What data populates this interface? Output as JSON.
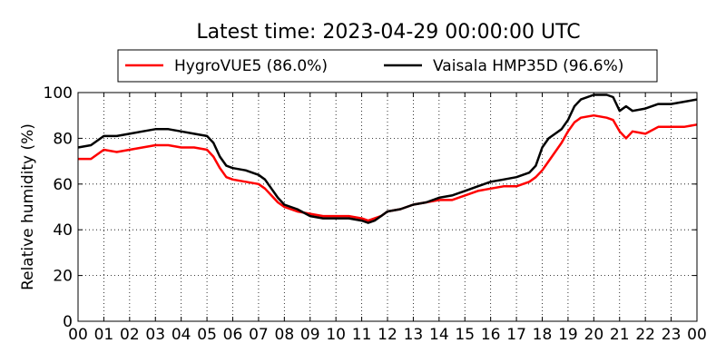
{
  "chart_data": {
    "type": "line",
    "title": "Latest time: 2023-04-29 00:00:00 UTC",
    "xlabel": "",
    "ylabel": "Relative humidity (%)",
    "xlim": [
      0,
      24
    ],
    "ylim": [
      0,
      100
    ],
    "x_ticks": [
      "00",
      "01",
      "02",
      "03",
      "04",
      "05",
      "06",
      "07",
      "08",
      "09",
      "10",
      "11",
      "12",
      "13",
      "14",
      "15",
      "16",
      "17",
      "18",
      "19",
      "20",
      "21",
      "22",
      "23",
      "00"
    ],
    "y_ticks": [
      0,
      20,
      40,
      60,
      80,
      100
    ],
    "grid": true,
    "legend_position": "top",
    "series": [
      {
        "name": "HygroVUE5 (86.0%)",
        "color": "#ff0000",
        "x": [
          0,
          0.5,
          1,
          1.5,
          2,
          2.5,
          3,
          3.5,
          4,
          4.5,
          5,
          5.25,
          5.5,
          5.75,
          6,
          6.5,
          7,
          7.25,
          7.5,
          7.75,
          8,
          8.5,
          9,
          9.5,
          10,
          10.5,
          11,
          11.25,
          11.5,
          11.75,
          12,
          12.5,
          13,
          13.5,
          14,
          14.5,
          15,
          15.5,
          16,
          16.5,
          17,
          17.5,
          17.75,
          18,
          18.25,
          18.5,
          18.75,
          19,
          19.25,
          19.5,
          20,
          20.5,
          20.75,
          21,
          21.25,
          21.5,
          22,
          22.5,
          23,
          23.5,
          24
        ],
        "y": [
          71,
          71,
          75,
          74,
          75,
          76,
          77,
          77,
          76,
          76,
          75,
          72,
          67,
          63,
          62,
          61,
          60,
          58,
          55,
          52,
          50,
          48,
          47,
          46,
          46,
          46,
          45,
          44,
          45,
          46,
          48,
          49,
          51,
          52,
          53,
          53,
          55,
          57,
          58,
          59,
          59,
          61,
          63,
          66,
          70,
          74,
          78,
          83,
          87,
          89,
          90,
          89,
          88,
          83,
          80,
          83,
          82,
          85,
          85,
          85,
          86
        ]
      },
      {
        "name": "Vaisala HMP35D (96.6%)",
        "color": "#000000",
        "x": [
          0,
          0.5,
          1,
          1.5,
          2,
          2.5,
          3,
          3.5,
          4,
          4.5,
          5,
          5.25,
          5.5,
          5.75,
          6,
          6.5,
          7,
          7.25,
          7.5,
          7.75,
          8,
          8.5,
          9,
          9.5,
          10,
          10.5,
          11,
          11.25,
          11.5,
          11.75,
          12,
          12.5,
          13,
          13.5,
          14,
          14.5,
          15,
          15.5,
          16,
          16.5,
          17,
          17.5,
          17.75,
          18,
          18.25,
          18.5,
          18.75,
          19,
          19.25,
          19.5,
          20,
          20.5,
          20.75,
          21,
          21.25,
          21.5,
          22,
          22.5,
          23,
          23.5,
          24
        ],
        "y": [
          76,
          77,
          81,
          81,
          82,
          83,
          84,
          84,
          83,
          82,
          81,
          78,
          72,
          68,
          67,
          66,
          64,
          62,
          58,
          54,
          51,
          49,
          46,
          45,
          45,
          45,
          44,
          43,
          44,
          46,
          48,
          49,
          51,
          52,
          54,
          55,
          57,
          59,
          61,
          62,
          63,
          65,
          68,
          76,
          80,
          82,
          84,
          88,
          94,
          97,
          99,
          99,
          98,
          92,
          94,
          92,
          93,
          95,
          95,
          96,
          97
        ]
      }
    ]
  }
}
